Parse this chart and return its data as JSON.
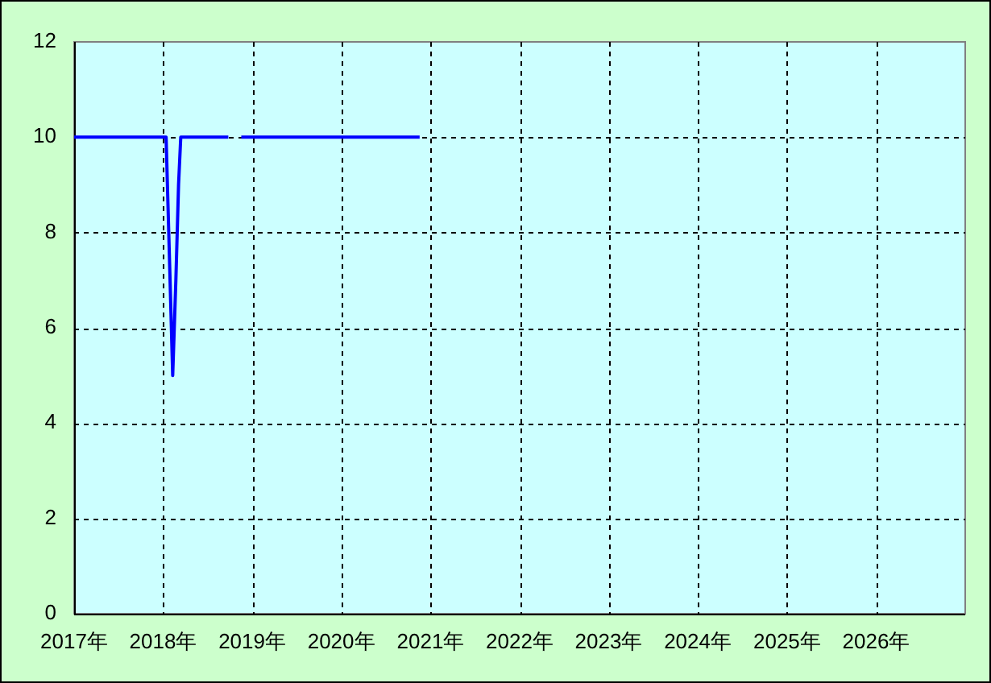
{
  "chart_data": {
    "type": "line",
    "x": [
      "2017-01-01",
      "2018-01-13",
      "2018-02-09",
      "2018-02-22",
      "2018-03-05",
      "2018-03-14",
      "2018-09-25",
      "2018-10-20",
      "2018-11-17",
      "2020-11-17"
    ],
    "series": [
      {
        "color": "#0000ff",
        "values": [
          10,
          10,
          5,
          7,
          9,
          10,
          10,
          null,
          10,
          10
        ]
      }
    ],
    "xlim": [
      "2017",
      "2027"
    ],
    "xticks": [
      {
        "value": "2017",
        "label": "2017年"
      },
      {
        "value": "2018",
        "label": "2018年"
      },
      {
        "value": "2019",
        "label": "2019年"
      },
      {
        "value": "2020",
        "label": "2020年"
      },
      {
        "value": "2021",
        "label": "2021年"
      },
      {
        "value": "2022",
        "label": "2022年"
      },
      {
        "value": "2023",
        "label": "2023年"
      },
      {
        "value": "2024",
        "label": "2024年"
      },
      {
        "value": "2025",
        "label": "2025年"
      },
      {
        "value": "2026",
        "label": "2026年"
      }
    ],
    "ylim": [
      0,
      12
    ],
    "yticks": [
      0,
      2,
      4,
      6,
      8,
      10,
      12
    ],
    "grid": true,
    "line_style": "solid"
  }
}
